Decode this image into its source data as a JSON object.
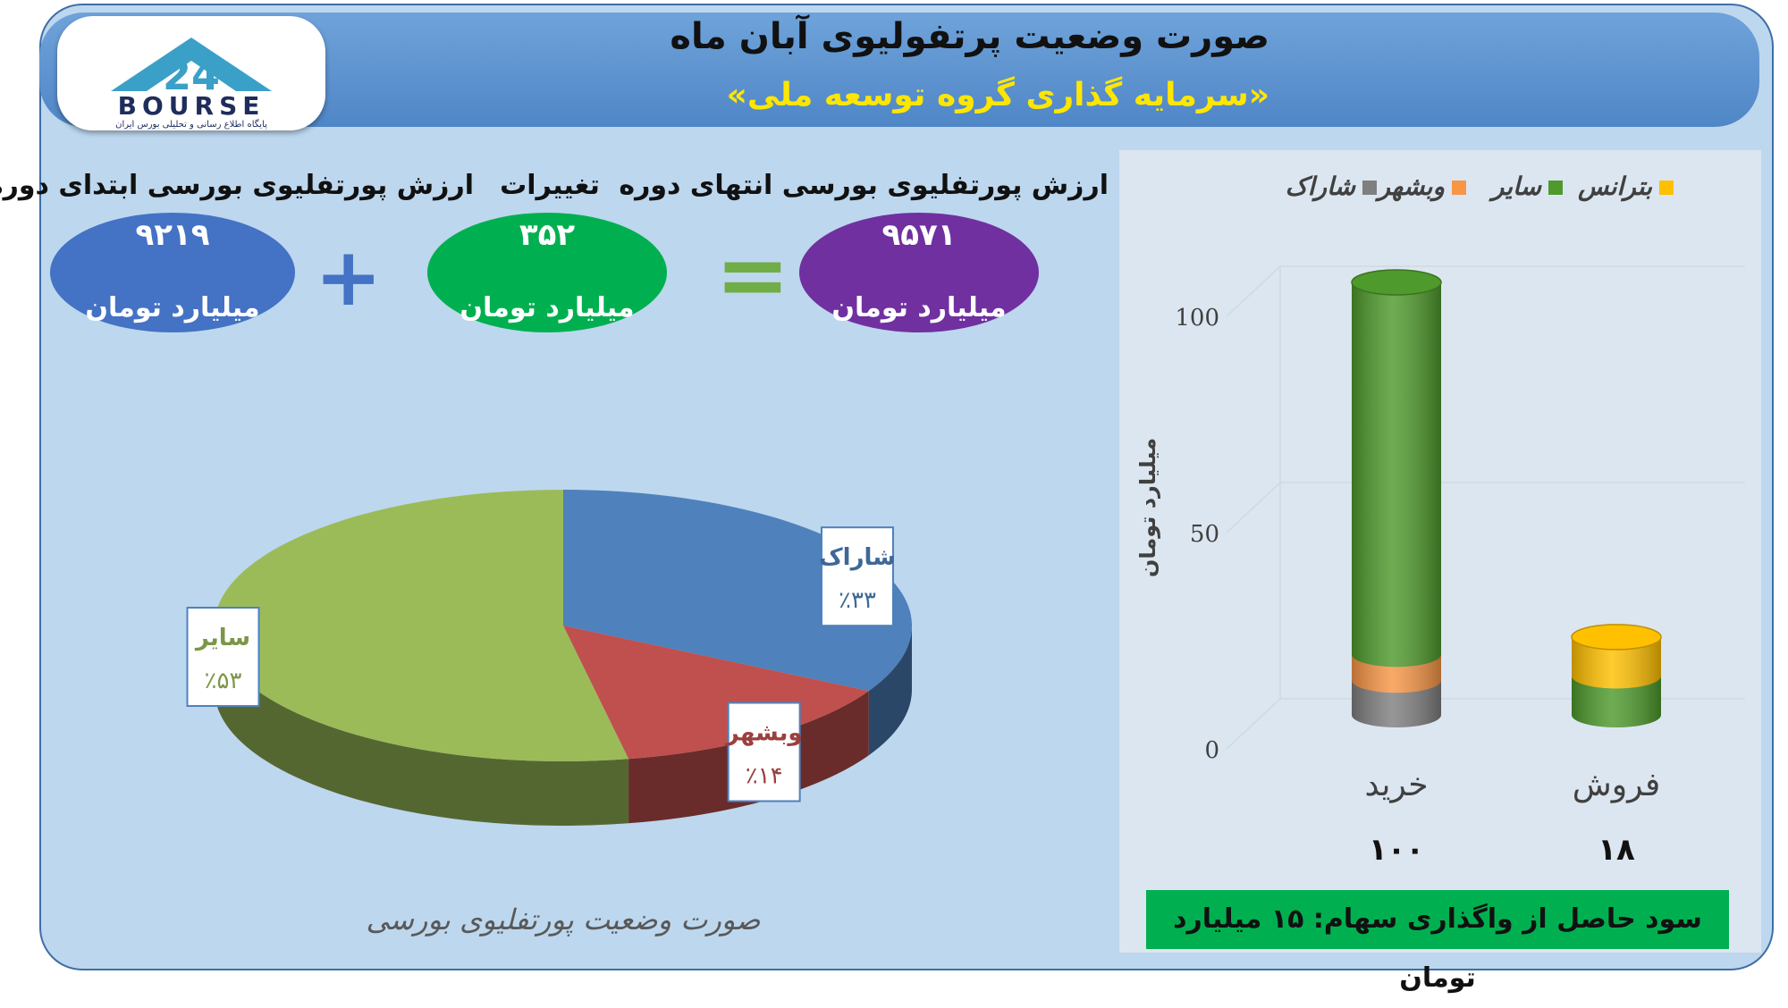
{
  "header": {
    "title": "صورت وضعیت پرتفولیوی آبان ماه",
    "subtitle": "«سرمایه گذاری گروه توسعه ملی»",
    "logo_text": "BOURSE",
    "logo_subtext": "پایگاه اطلاع رسانی و تحلیلی بورس ایران"
  },
  "summary": {
    "start": {
      "label": "ارزش پورتفلیوی بورسی ابتدای دوره",
      "value": "۹۲۱۹",
      "unit": "میلیارد تومان",
      "color": "#4472c4"
    },
    "change": {
      "label": "تغییرات",
      "value": "۳۵۲",
      "unit": "میلیارد تومان",
      "color": "#00b050"
    },
    "end": {
      "label": "ارزش پورتفلیوی بورسی انتهای دوره",
      "value": "۹۵۷۱",
      "unit": "میلیارد تومان",
      "color": "#7030a0"
    },
    "plus": "+",
    "equals": "="
  },
  "chart_data": [
    {
      "type": "pie",
      "title": "صورت وضعیت پورتفلیوی بورسی",
      "slices": [
        {
          "name": "شاراک",
          "value": 33,
          "label": "٪۳۳",
          "color": "#4f81bd"
        },
        {
          "name": "وبشهر",
          "value": 14,
          "label": "٪۱۴",
          "color": "#c0504d"
        },
        {
          "name": "سایر",
          "value": 53,
          "label": "٪۵۳",
          "color": "#9bbb59"
        }
      ]
    },
    {
      "type": "bar",
      "stacked": true,
      "ylabel": "میلیارد تومان",
      "ylim": [
        0,
        100
      ],
      "yticks": [
        "0",
        "50",
        "100"
      ],
      "categories": [
        "خرید",
        "فروش"
      ],
      "totals": [
        "۱۰۰",
        "۱۸"
      ],
      "legend_position": "top",
      "series": [
        {
          "name": "شاراک",
          "color": "#7f7f7f",
          "values": [
            8,
            0
          ]
        },
        {
          "name": "وبشهر",
          "color": "#f79646",
          "values": [
            6,
            0
          ]
        },
        {
          "name": "سایر",
          "color": "#4e9a2c",
          "values": [
            86,
            9
          ]
        },
        {
          "name": "بترانس",
          "color": "#ffc000",
          "values": [
            0,
            9
          ]
        }
      ],
      "legend_order": [
        "بترانس",
        "سایر",
        "وبشهر",
        "شاراک"
      ]
    }
  ],
  "footer": {
    "gain_text": "سود حاصل از واگذاری سهام: ۱۵ میلیارد تومان"
  }
}
